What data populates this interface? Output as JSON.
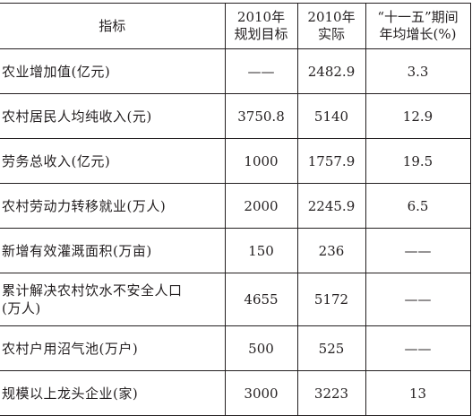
{
  "table": {
    "headers": [
      {
        "lines": [
          "指标"
        ]
      },
      {
        "lines": [
          "2010年",
          "规划目标"
        ]
      },
      {
        "lines": [
          "2010年",
          "实际"
        ]
      },
      {
        "lines": [
          "“十一五”期间",
          "年均增长(%)"
        ]
      }
    ],
    "rows": [
      {
        "indicator": [
          "农业增加值(亿元)"
        ],
        "target": "——",
        "actual": "2482.9",
        "growth": "3.3"
      },
      {
        "indicator": [
          "农村居民人均纯收入(元)"
        ],
        "target": "3750.8",
        "actual": "5140",
        "growth": "12.9"
      },
      {
        "indicator": [
          "劳务总收入(亿元)"
        ],
        "target": "1000",
        "actual": "1757.9",
        "growth": "19.5"
      },
      {
        "indicator": [
          "农村劳动力转移就业(万人)"
        ],
        "target": "2000",
        "actual": "2245.9",
        "growth": "6.5"
      },
      {
        "indicator": [
          "新增有效灌溉面积(万亩)"
        ],
        "target": "150",
        "actual": "236",
        "growth": "——"
      },
      {
        "indicator": [
          "累计解决农村饮水不安全人口",
          "(万人)"
        ],
        "target": "4655",
        "actual": "5172",
        "growth": "——"
      },
      {
        "indicator": [
          "农村户用沼气池(万户)"
        ],
        "target": "500",
        "actual": "525",
        "growth": "——"
      },
      {
        "indicator": [
          "规模以上龙头企业(家)"
        ],
        "target": "3000",
        "actual": "3223",
        "growth": "13"
      }
    ]
  }
}
